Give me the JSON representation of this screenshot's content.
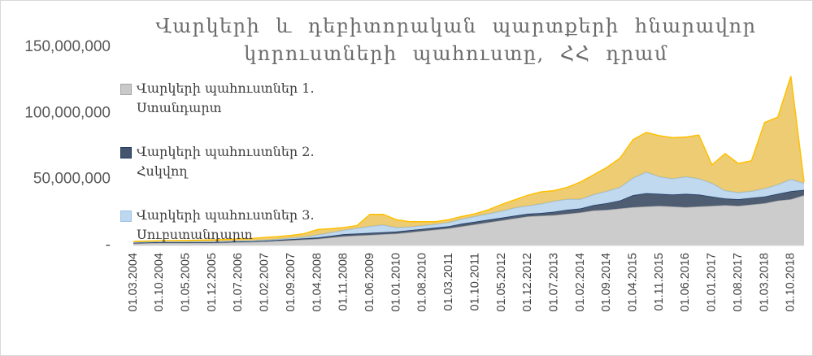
{
  "chart_data": {
    "type": "stacked_area",
    "title": "Վարկերի և դեբիտորական պարտքերի հնարավոր կորուստների պահուստը, ՀՀ դրամ",
    "categories": [
      "01.03.2004",
      null,
      "01.10.2004",
      null,
      "01.05.2005",
      null,
      "01.12.2005",
      null,
      "01.07.2006",
      null,
      "01.02.2007",
      null,
      "01.09.2007",
      null,
      "01.04.2008",
      null,
      "01.11.2008",
      null,
      "01.06.2009",
      null,
      "01.01.2010",
      null,
      "01.08.2010",
      null,
      "01.03.2011",
      null,
      "01.10.2011",
      null,
      "01.05.2012",
      null,
      "01.12.2012",
      null,
      "01.07.2013",
      null,
      "01.02.2014",
      null,
      "01.09.2014",
      null,
      "01.04.2015",
      null,
      "01.11.2015",
      null,
      "01.06.2016",
      null,
      "01.01.2017",
      null,
      "01.08.2017",
      null,
      "01.03.2018",
      null,
      "01.10.2018",
      null
    ],
    "series": [
      {
        "name": "Վարկերի պահուստներ 1. Ստանդարտ",
        "color": "#c9c9c9",
        "line": "#a5a5a5",
        "values": [
          1500000,
          1800000,
          2000000,
          2000000,
          2000000,
          2000000,
          2000000,
          2200000,
          2500000,
          2700000,
          3000000,
          3500000,
          4000000,
          4500000,
          5000000,
          6000000,
          7000000,
          7500000,
          8000000,
          8500000,
          9000000,
          10000000,
          11000000,
          12000000,
          13000000,
          14500000,
          16000000,
          17500000,
          19000000,
          20500000,
          22000000,
          22500000,
          23000000,
          24000000,
          25000000,
          26500000,
          27000000,
          28000000,
          29000000,
          29500000,
          30000000,
          29500000,
          29000000,
          29500000,
          30000000,
          30500000,
          30000000,
          31000000,
          32000000,
          34000000,
          35000000,
          38000000
        ]
      },
      {
        "name": "Վարկերի պահուստներ 2. Հսկվող",
        "color": "#44546a",
        "line": "#1f3864",
        "values": [
          500000,
          500000,
          500000,
          500000,
          500000,
          500000,
          500000,
          500000,
          500000,
          500000,
          600000,
          700000,
          800000,
          900000,
          1000000,
          1200000,
          1500000,
          1500000,
          1500000,
          1500000,
          1500000,
          1500000,
          1500000,
          1500000,
          1500000,
          2000000,
          2000000,
          2000000,
          2000000,
          2000000,
          2000000,
          2000000,
          2500000,
          3000000,
          3000000,
          4000000,
          5000000,
          6000000,
          9000000,
          10000000,
          9000000,
          9000000,
          10000000,
          9000000,
          7000000,
          5000000,
          5000000,
          5000000,
          5000000,
          5000000,
          6000000,
          4000000
        ]
      },
      {
        "name": "Վարկերի պահուստներ 3. Սուբստանդարտ",
        "color": "#bdd7ee",
        "line": "#9dc3e6",
        "values": [
          500000,
          500000,
          500000,
          500000,
          500000,
          500000,
          500000,
          500000,
          500000,
          500000,
          500000,
          500000,
          800000,
          1000000,
          2000000,
          2500000,
          3000000,
          4000000,
          5000000,
          5500000,
          3000000,
          2500000,
          2500000,
          2500000,
          3000000,
          3500000,
          4000000,
          4500000,
          5000000,
          6000000,
          6000000,
          7000000,
          8000000,
          8000000,
          7000000,
          8000000,
          9000000,
          10000000,
          13000000,
          16000000,
          13000000,
          12000000,
          13000000,
          12000000,
          10000000,
          6000000,
          5000000,
          5000000,
          6000000,
          7000000,
          9000000,
          5000000
        ]
      },
      {
        "color": "#e8bb45",
        "line": "#ffc000",
        "values": [
          500000,
          500000,
          500000,
          700000,
          800000,
          1000000,
          1200000,
          1300000,
          1500000,
          1500000,
          2000000,
          2000000,
          2000000,
          2500000,
          4000000,
          3000000,
          2000000,
          2000000,
          9000000,
          8000000,
          6000000,
          4000000,
          3000000,
          2000000,
          2000000,
          2000000,
          2000000,
          3000000,
          5000000,
          6000000,
          8000000,
          9000000,
          8000000,
          9000000,
          13000000,
          15000000,
          18000000,
          22000000,
          29000000,
          30000000,
          31000000,
          31000000,
          30000000,
          33000000,
          14000000,
          28000000,
          22000000,
          23000000,
          50000000,
          51000000,
          78000000,
          1000000
        ]
      }
    ],
    "ylim": [
      0,
      150000000
    ],
    "yticks": [
      {
        "value": 0,
        "label": "-"
      },
      {
        "value": 50000000,
        "label": "50,000,000"
      },
      {
        "value": 100000000,
        "label": "100,000,000"
      },
      {
        "value": 150000000,
        "label": "150,000,000"
      }
    ]
  }
}
